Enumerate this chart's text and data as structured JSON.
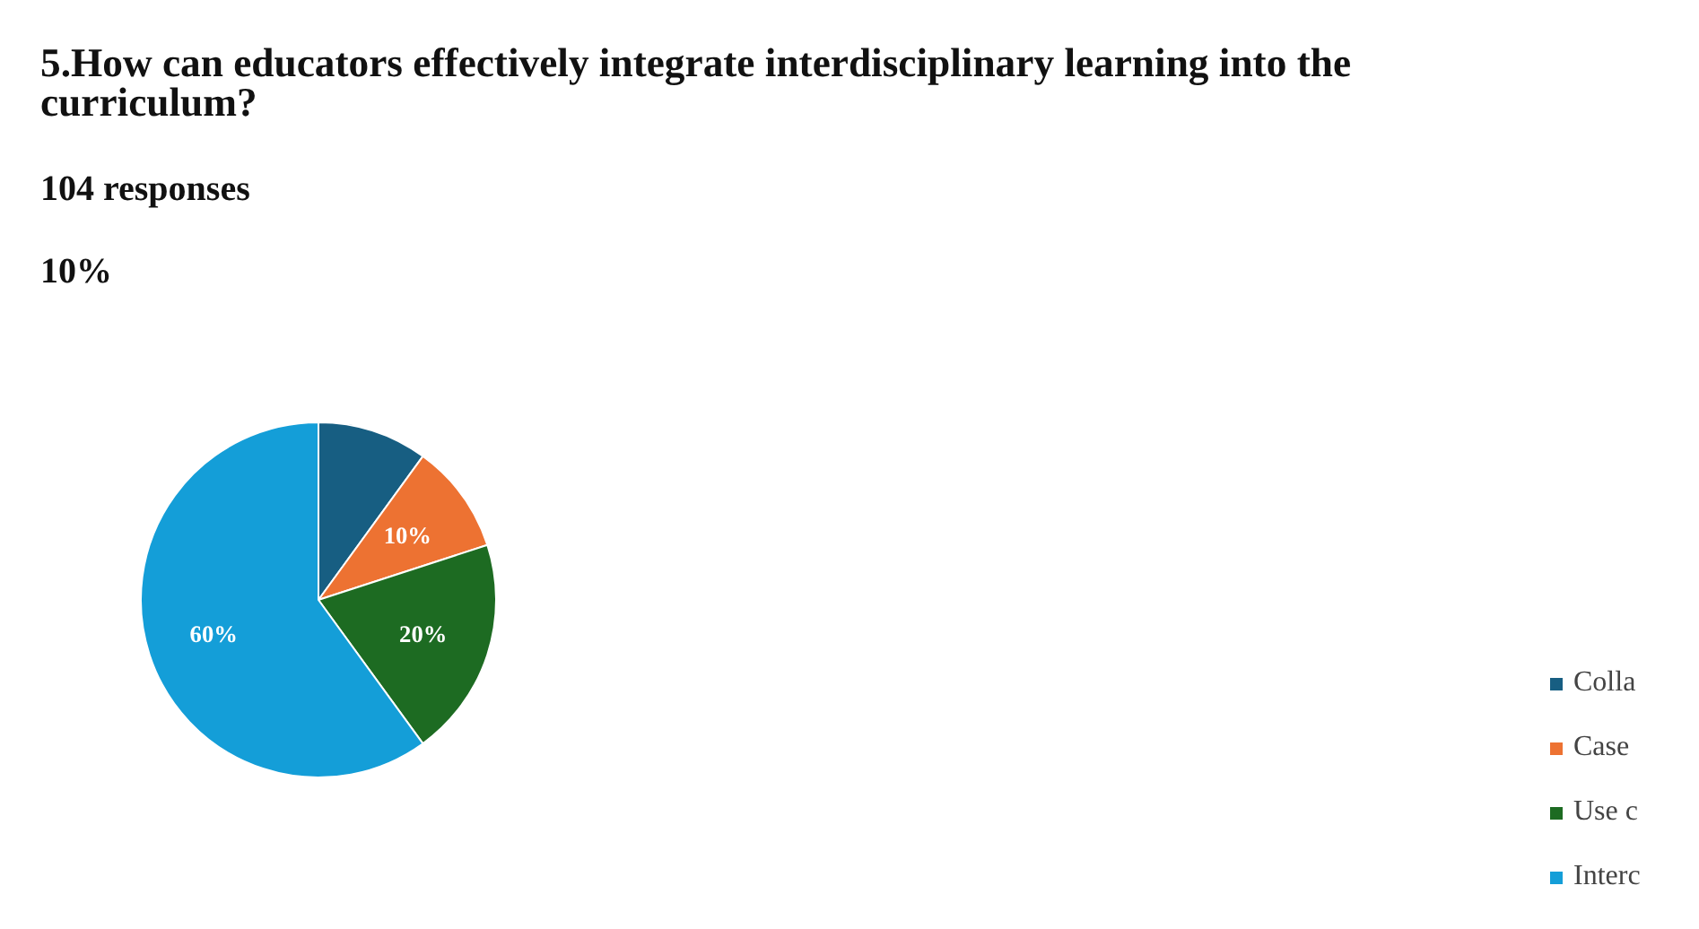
{
  "chart_data": {
    "type": "pie",
    "title": "5.How can educators effectively integrate interdisciplinary learning into the curriculum?",
    "subtitle": "104 responses",
    "annotations": [
      "10%"
    ],
    "categories": [
      "Colla",
      "Case",
      "Use c",
      "Interc"
    ],
    "values": [
      10,
      10,
      20,
      60
    ],
    "value_labels": [
      null,
      "10%",
      "20%",
      "60%"
    ],
    "colors": [
      "#175e82",
      "#ed7232",
      "#1d6b22",
      "#149ed8"
    ],
    "legend": "right"
  }
}
